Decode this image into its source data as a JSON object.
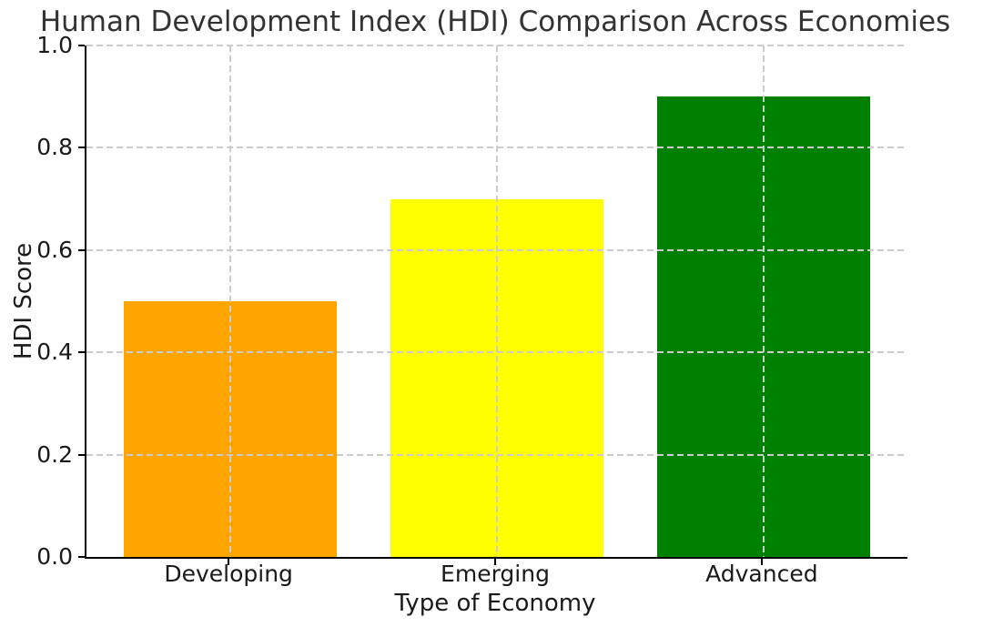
{
  "chart_data": {
    "type": "bar",
    "title": "Human Development Index (HDI) Comparison Across Economies",
    "xlabel": "Type of Economy",
    "ylabel": "HDI Score",
    "categories": [
      "Developing",
      "Emerging",
      "Advanced"
    ],
    "values": [
      0.5,
      0.7,
      0.9
    ],
    "bar_colors": [
      "#FFA500",
      "#FFFF00",
      "#008000"
    ],
    "ylim": [
      0.0,
      1.0
    ],
    "yticks": [
      "0.0",
      "0.2",
      "0.4",
      "0.6",
      "0.8",
      "1.0"
    ],
    "grid": "dashed, horizontal at y-ticks and vertical at bar centers, drawn over bars",
    "grid_color": "#cccccc",
    "axis_color": "#000000",
    "title_color": "#333333",
    "text_color": "#1a1a1a",
    "background_color": "#ffffff",
    "legend": "none",
    "spines": "left and bottom only"
  }
}
